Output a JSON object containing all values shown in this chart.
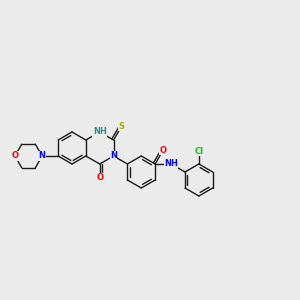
{
  "bg_color": "#ebebeb",
  "bond_color": "#1a1a1a",
  "atom_colors": {
    "N": "#0000ff",
    "O": "#ff0000",
    "S": "#aaaa00",
    "Cl": "#22bb22",
    "NH": "#2a8a8a",
    "C": "#1a1a1a"
  },
  "font_size": 6.0,
  "lw": 1.0,
  "figsize": [
    3.0,
    3.0
  ],
  "dpi": 100,
  "xlim": [
    0,
    300
  ],
  "ylim": [
    0,
    300
  ],
  "BL": 16
}
